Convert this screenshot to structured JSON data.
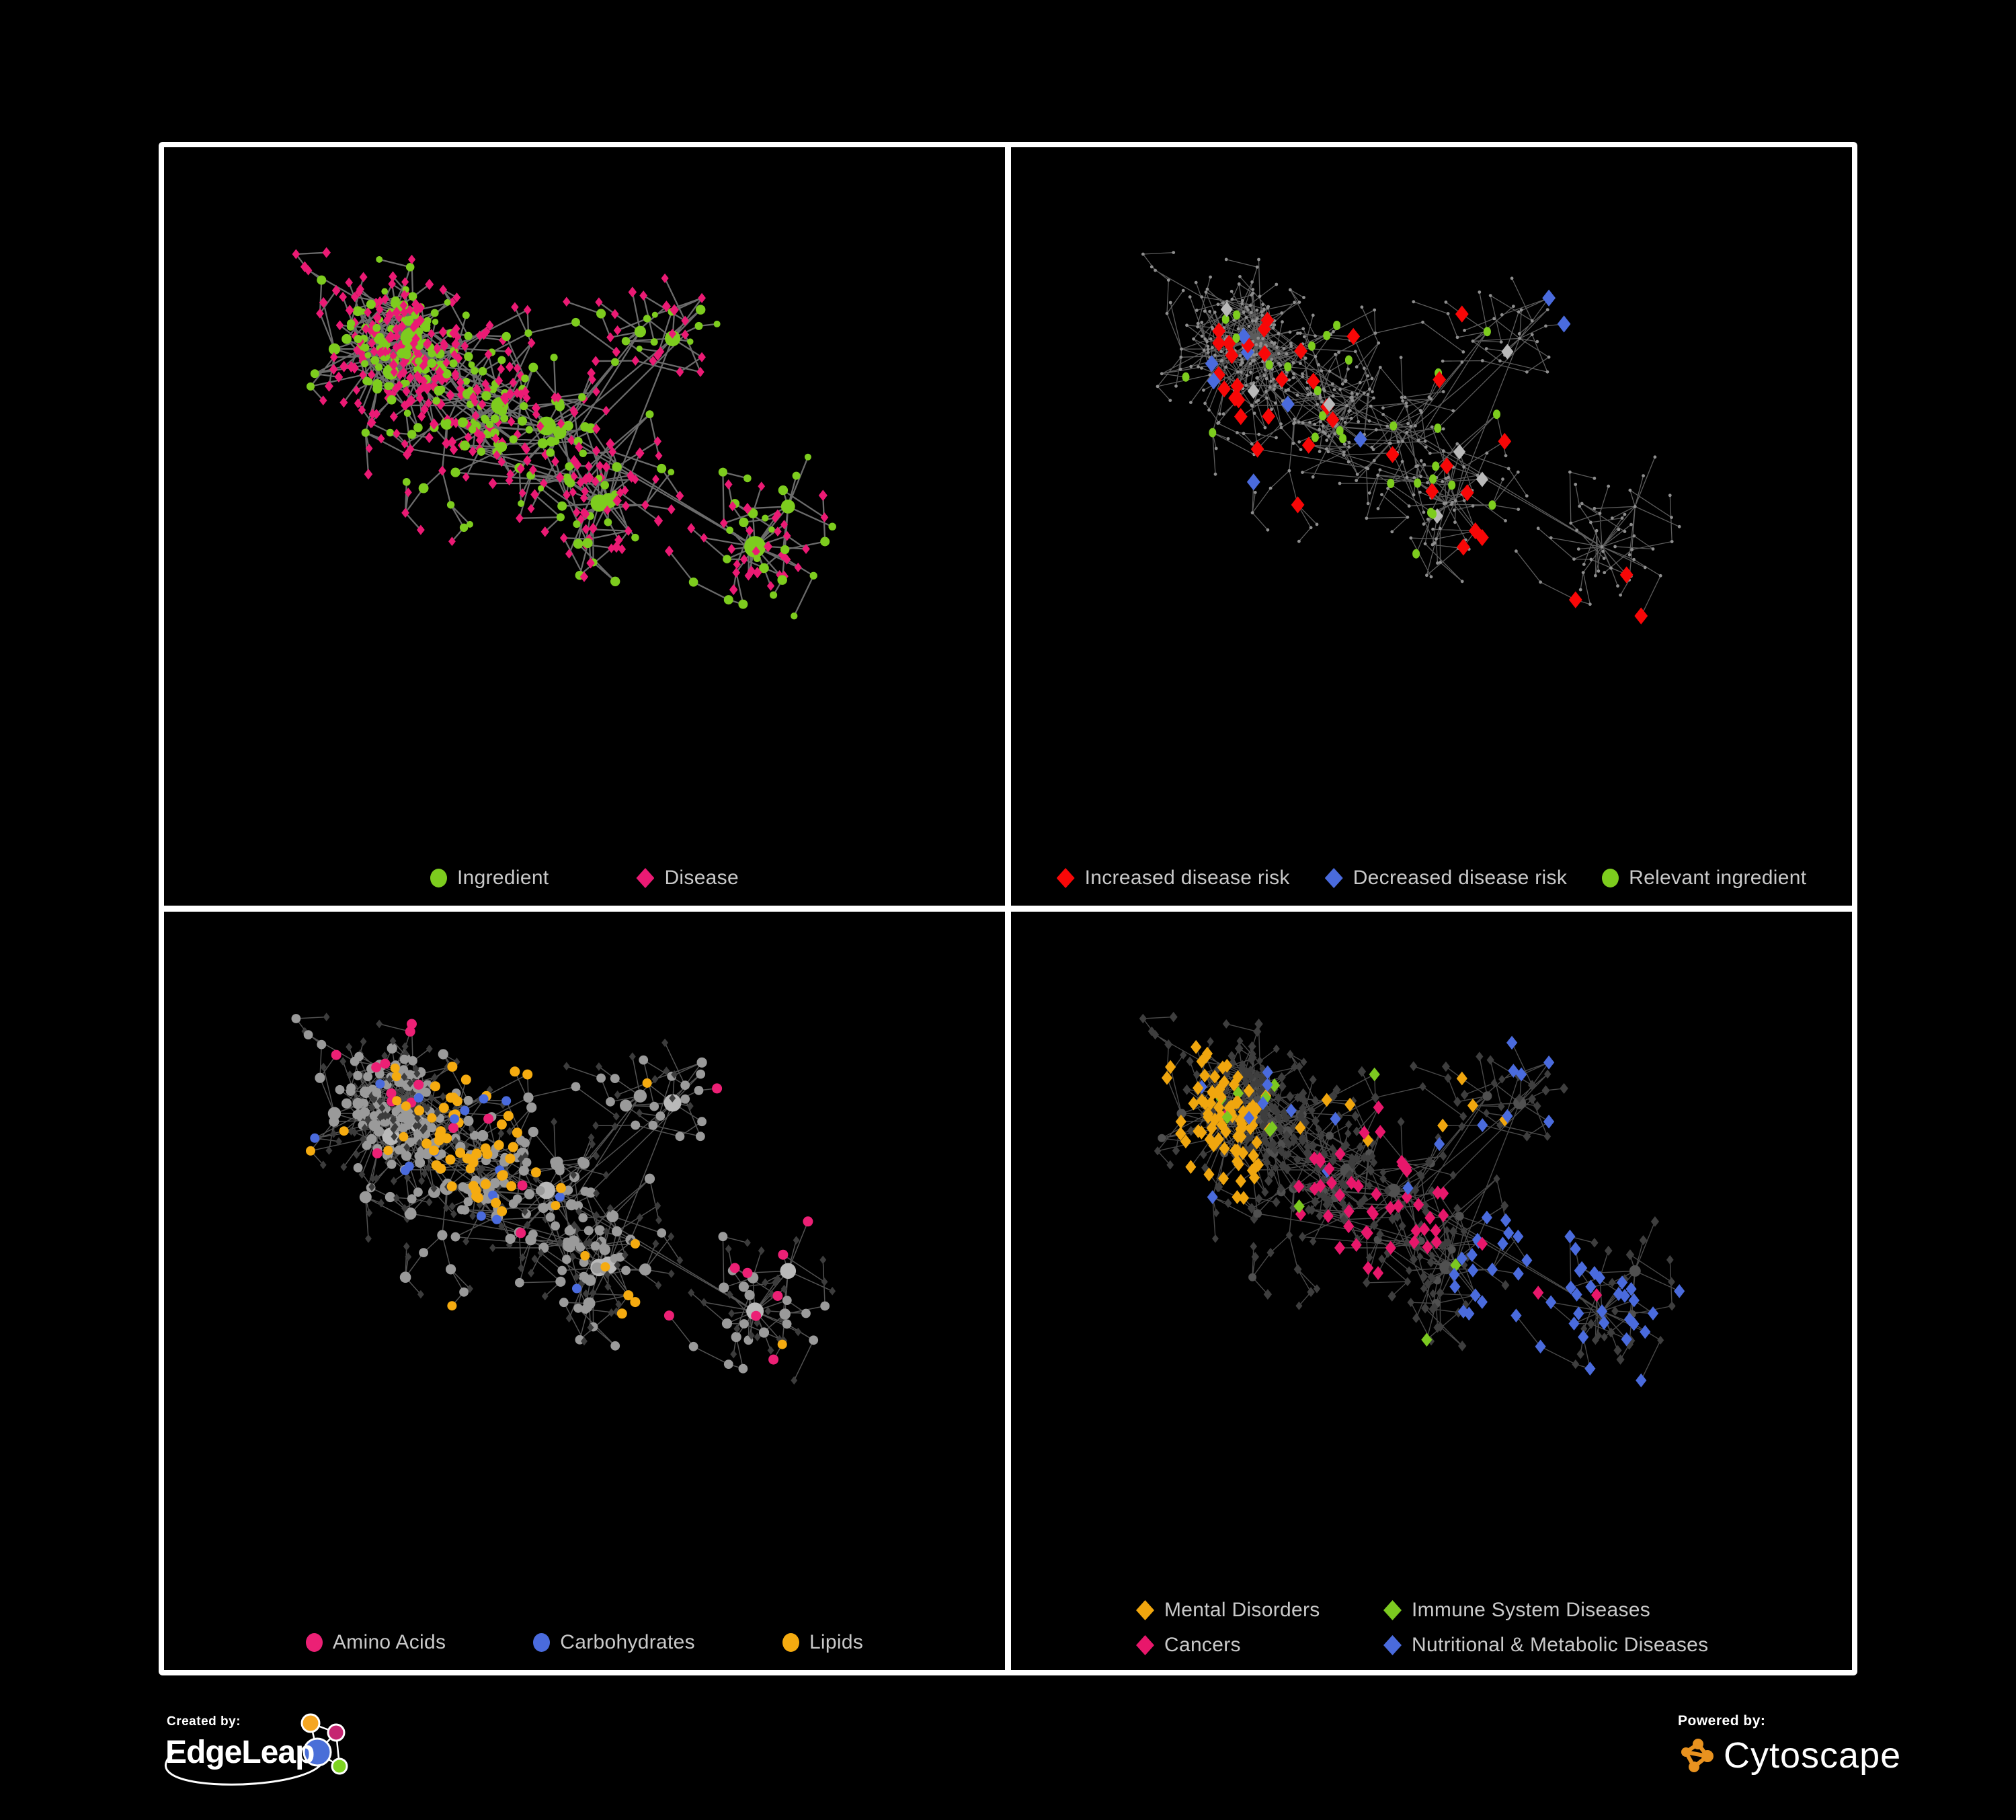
{
  "poster": {
    "background": "#000000",
    "panel_border_color": "#FFFFFF",
    "legend_text_color": "#C9C9C9"
  },
  "panels": [
    {
      "name": "ingredient-disease",
      "legend": [
        {
          "label": "Ingredient",
          "shape": "circle",
          "color": "#7DCC1E"
        },
        {
          "label": "Disease",
          "shape": "diamond",
          "color": "#EB1A74"
        }
      ],
      "style": {
        "edge_color": "#7E7E7E",
        "edge_width": 2.3,
        "ingredient_color": "#7DCC1E",
        "disease_color": "#EB1A74"
      }
    },
    {
      "name": "disease-risk",
      "legend": [
        {
          "label": "Increased disease risk",
          "shape": "diamond",
          "color": "#F80707"
        },
        {
          "label": "Decreased disease risk",
          "shape": "diamond",
          "color": "#4A6BDD"
        },
        {
          "label": "Relevant ingredient",
          "shape": "circle",
          "color": "#7DCC1E"
        }
      ],
      "style": {
        "edge_color": "#6C6C6C",
        "edge_width": 1.3,
        "base_node_color": "#8E8E8E",
        "increased_color": "#F80707",
        "decreased_color": "#4A6BDD",
        "neutral_color": "#B9B9B9",
        "ingredient_color": "#7DCC1E"
      }
    },
    {
      "name": "nutrient-classes",
      "legend": [
        {
          "label": "Amino Acids",
          "shape": "circle",
          "color": "#EC2075"
        },
        {
          "label": "Carbohydrates",
          "shape": "circle",
          "color": "#4A6BDD"
        },
        {
          "label": "Lipids",
          "shape": "circle",
          "color": "#F5AB10"
        }
      ],
      "style": {
        "edge_color": "#606060",
        "edge_width": 1.5,
        "hub_color": "#9A9A9A",
        "bright_hub_color": "#B9B9B9",
        "leaf_color": "#3C3C3C",
        "amino_color": "#EC2075",
        "carb_color": "#4A6BDD",
        "lipid_color": "#F5AB10"
      }
    },
    {
      "name": "disease-categories",
      "legend": [
        {
          "label": "Mental Disorders",
          "shape": "diamond",
          "color": "#F0A60E"
        },
        {
          "label": "Immune System Diseases",
          "shape": "diamond",
          "color": "#7CC920"
        },
        {
          "label": "Cancers",
          "shape": "diamond",
          "color": "#E8176B"
        },
        {
          "label": "Nutritional & Metabolic Diseases",
          "shape": "diamond",
          "color": "#4A6BDD"
        }
      ],
      "style": {
        "edge_color": "#565656",
        "edge_width": 1.4,
        "hub_color": "#505050",
        "leaf_color": "#3E3E3E",
        "mental_color": "#F0A60E",
        "immune_color": "#7CC920",
        "cancer_color": "#E8176B",
        "metabolic_color": "#4A6BDD"
      }
    }
  ],
  "network": {
    "seed": 1337,
    "nodes": 650,
    "roots": 7,
    "chain_prob": 0.3,
    "bias": 2.7,
    "step": 50,
    "cross_links": 42
  },
  "footer": {
    "created_by": {
      "label": "Created by:",
      "brand": "EdgeLeap",
      "logo_colors": {
        "orange": "#F5A623",
        "magenta": "#C52571",
        "blue": "#4A6FD8",
        "green": "#7ED321"
      }
    },
    "powered_by": {
      "label": "Powered by:",
      "brand": "Cytoscape",
      "icon_color": "#E8921F"
    }
  }
}
